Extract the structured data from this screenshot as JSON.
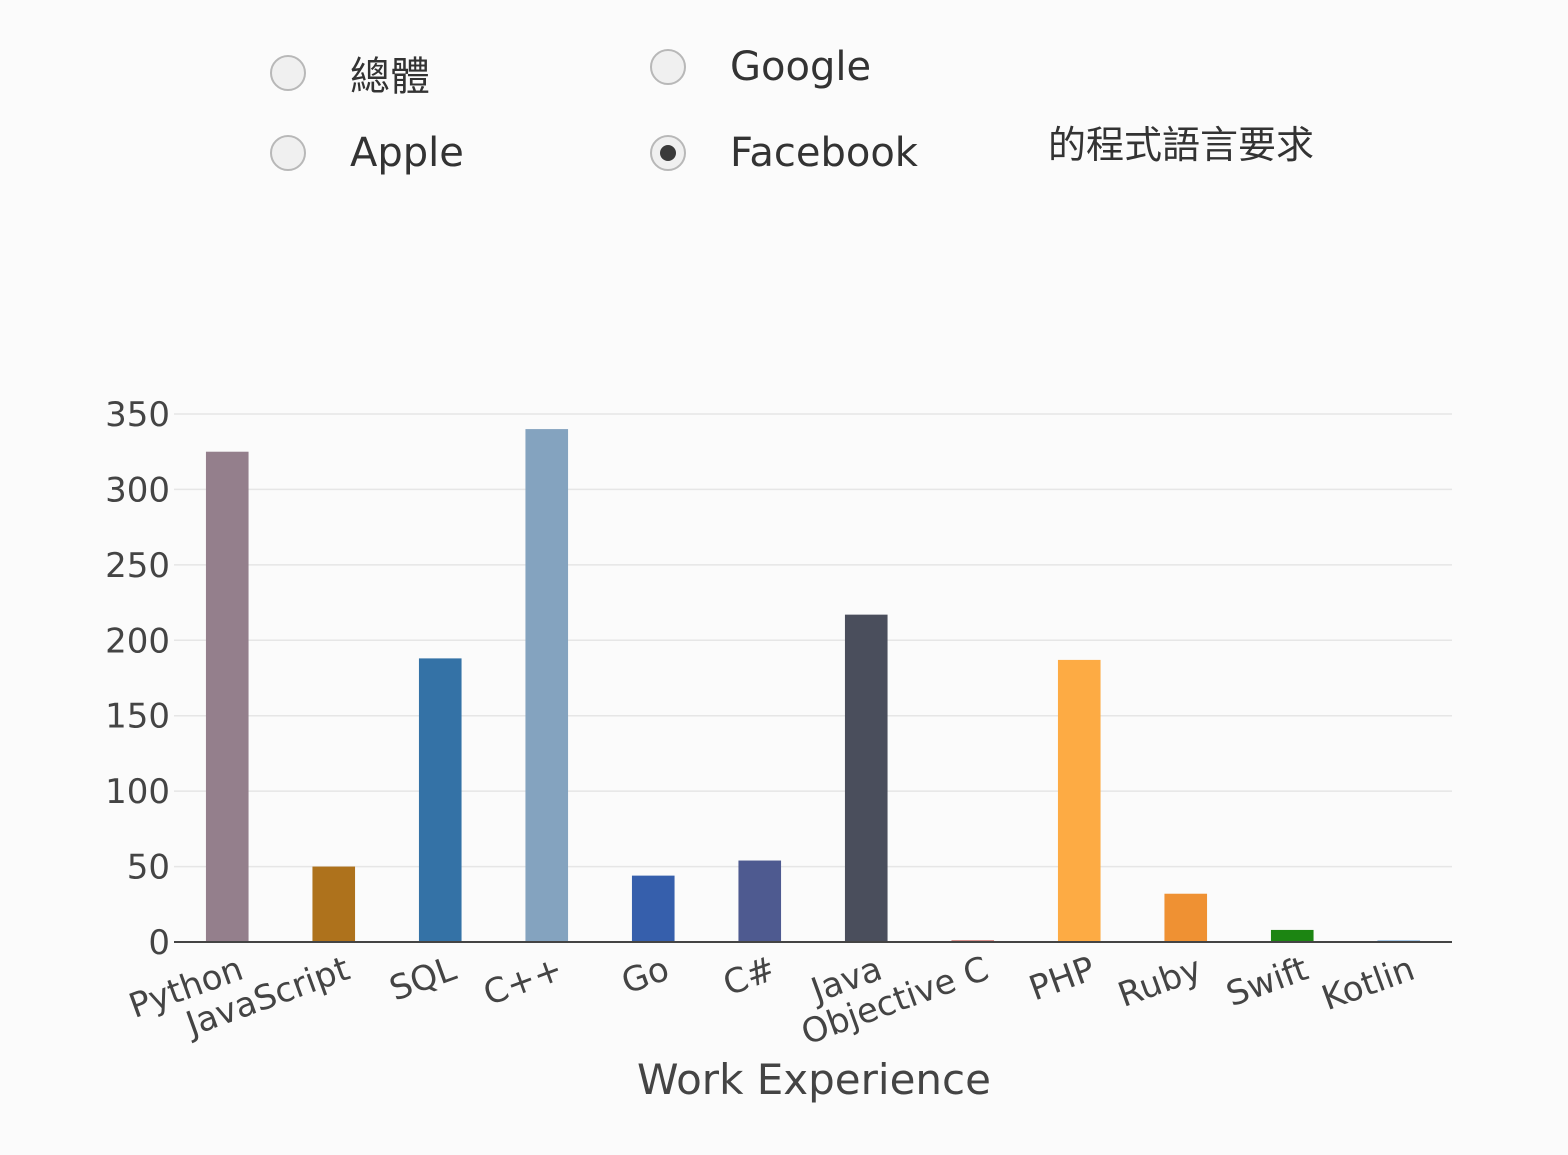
{
  "filter": {
    "options": [
      {
        "label": "總體",
        "checked": false
      },
      {
        "label": "Google",
        "checked": false
      },
      {
        "label": "Apple",
        "checked": false
      },
      {
        "label": "Facebook",
        "checked": true
      }
    ],
    "suffix_label": "的程式語言要求"
  },
  "chart_data": {
    "type": "bar",
    "categories": [
      "Python",
      "JavaScript",
      "SQL",
      "C++",
      "Go",
      "C#",
      "Java",
      "Objective C",
      "PHP",
      "Ruby",
      "Swift",
      "Kotlin"
    ],
    "values": [
      325,
      50,
      188,
      340,
      44,
      54,
      217,
      1,
      187,
      32,
      8,
      1
    ],
    "colors": [
      "#947f8c",
      "#ae721c",
      "#3472a6",
      "#84a3bf",
      "#365fac",
      "#4e5a90",
      "#4a4e5c",
      "#b82c26",
      "#fdab44",
      "#ef9133",
      "#1c8512",
      "#5b9ad6"
    ],
    "xlabel": "Work Experience",
    "ylabel": "",
    "ylim": [
      0,
      350
    ],
    "yticks": [
      0,
      50,
      100,
      150,
      200,
      250,
      300,
      350
    ],
    "grid": true
  }
}
